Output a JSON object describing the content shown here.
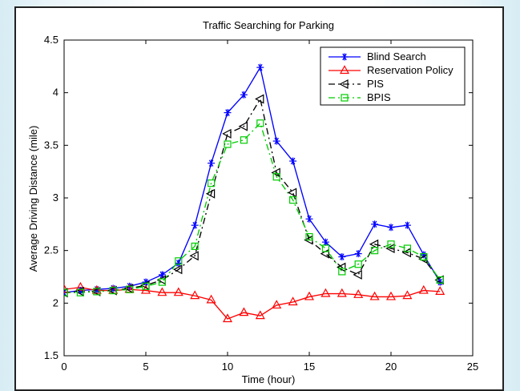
{
  "chart_data": {
    "type": "line",
    "title": "Traffic Searching for Parking",
    "xlabel": "Time (hour)",
    "ylabel": "Average Driving Distance (mile)",
    "xlim": [
      0,
      25
    ],
    "ylim": [
      1.5,
      4.5
    ],
    "xticks": [
      0,
      5,
      10,
      15,
      20,
      25
    ],
    "yticks": [
      1.5,
      2,
      2.5,
      3,
      3.5,
      4,
      4.5
    ],
    "xtick_labels": [
      "0",
      "5",
      "10",
      "15",
      "20",
      "25"
    ],
    "ytick_labels": [
      "1.5",
      "2",
      "2.5",
      "3",
      "3.5",
      "4",
      "4.5"
    ],
    "grid": false,
    "legend_position": "top-right",
    "x": [
      0,
      1,
      2,
      3,
      4,
      5,
      6,
      7,
      8,
      9,
      10,
      11,
      12,
      13,
      14,
      15,
      16,
      17,
      18,
      19,
      20,
      21,
      22,
      23
    ],
    "series": [
      {
        "name": "Blind Search",
        "color": "#0000ff",
        "line_style": "solid",
        "marker": "asterisk",
        "values": [
          2.1,
          2.12,
          2.13,
          2.14,
          2.16,
          2.2,
          2.27,
          2.38,
          2.74,
          3.33,
          3.81,
          3.98,
          4.24,
          3.54,
          3.35,
          2.8,
          2.58,
          2.44,
          2.47,
          2.75,
          2.72,
          2.74,
          2.46,
          2.2
        ]
      },
      {
        "name": "Reservation Policy",
        "color": "#ff0000",
        "line_style": "solid",
        "marker": "triangle-up",
        "values": [
          2.13,
          2.15,
          2.12,
          2.12,
          2.13,
          2.12,
          2.1,
          2.1,
          2.07,
          2.03,
          1.85,
          1.91,
          1.88,
          1.98,
          2.01,
          2.06,
          2.09,
          2.09,
          2.08,
          2.06,
          2.06,
          2.07,
          2.12,
          2.11
        ]
      },
      {
        "name": "PIS",
        "color": "#000000",
        "line_style": "dashdot",
        "marker": "triangle-left",
        "values": [
          2.1,
          2.11,
          2.11,
          2.12,
          2.14,
          2.17,
          2.22,
          2.32,
          2.45,
          3.04,
          3.61,
          3.68,
          3.94,
          3.24,
          3.05,
          2.6,
          2.47,
          2.34,
          2.27,
          2.56,
          2.52,
          2.48,
          2.42,
          2.22
        ]
      },
      {
        "name": "BPIS",
        "color": "#00cc00",
        "line_style": "dashdot",
        "marker": "square",
        "values": [
          2.1,
          2.1,
          2.11,
          2.12,
          2.13,
          2.16,
          2.2,
          2.4,
          2.54,
          3.14,
          3.51,
          3.55,
          3.71,
          3.2,
          2.98,
          2.63,
          2.52,
          2.3,
          2.37,
          2.5,
          2.56,
          2.52,
          2.44,
          2.22
        ]
      }
    ]
  }
}
